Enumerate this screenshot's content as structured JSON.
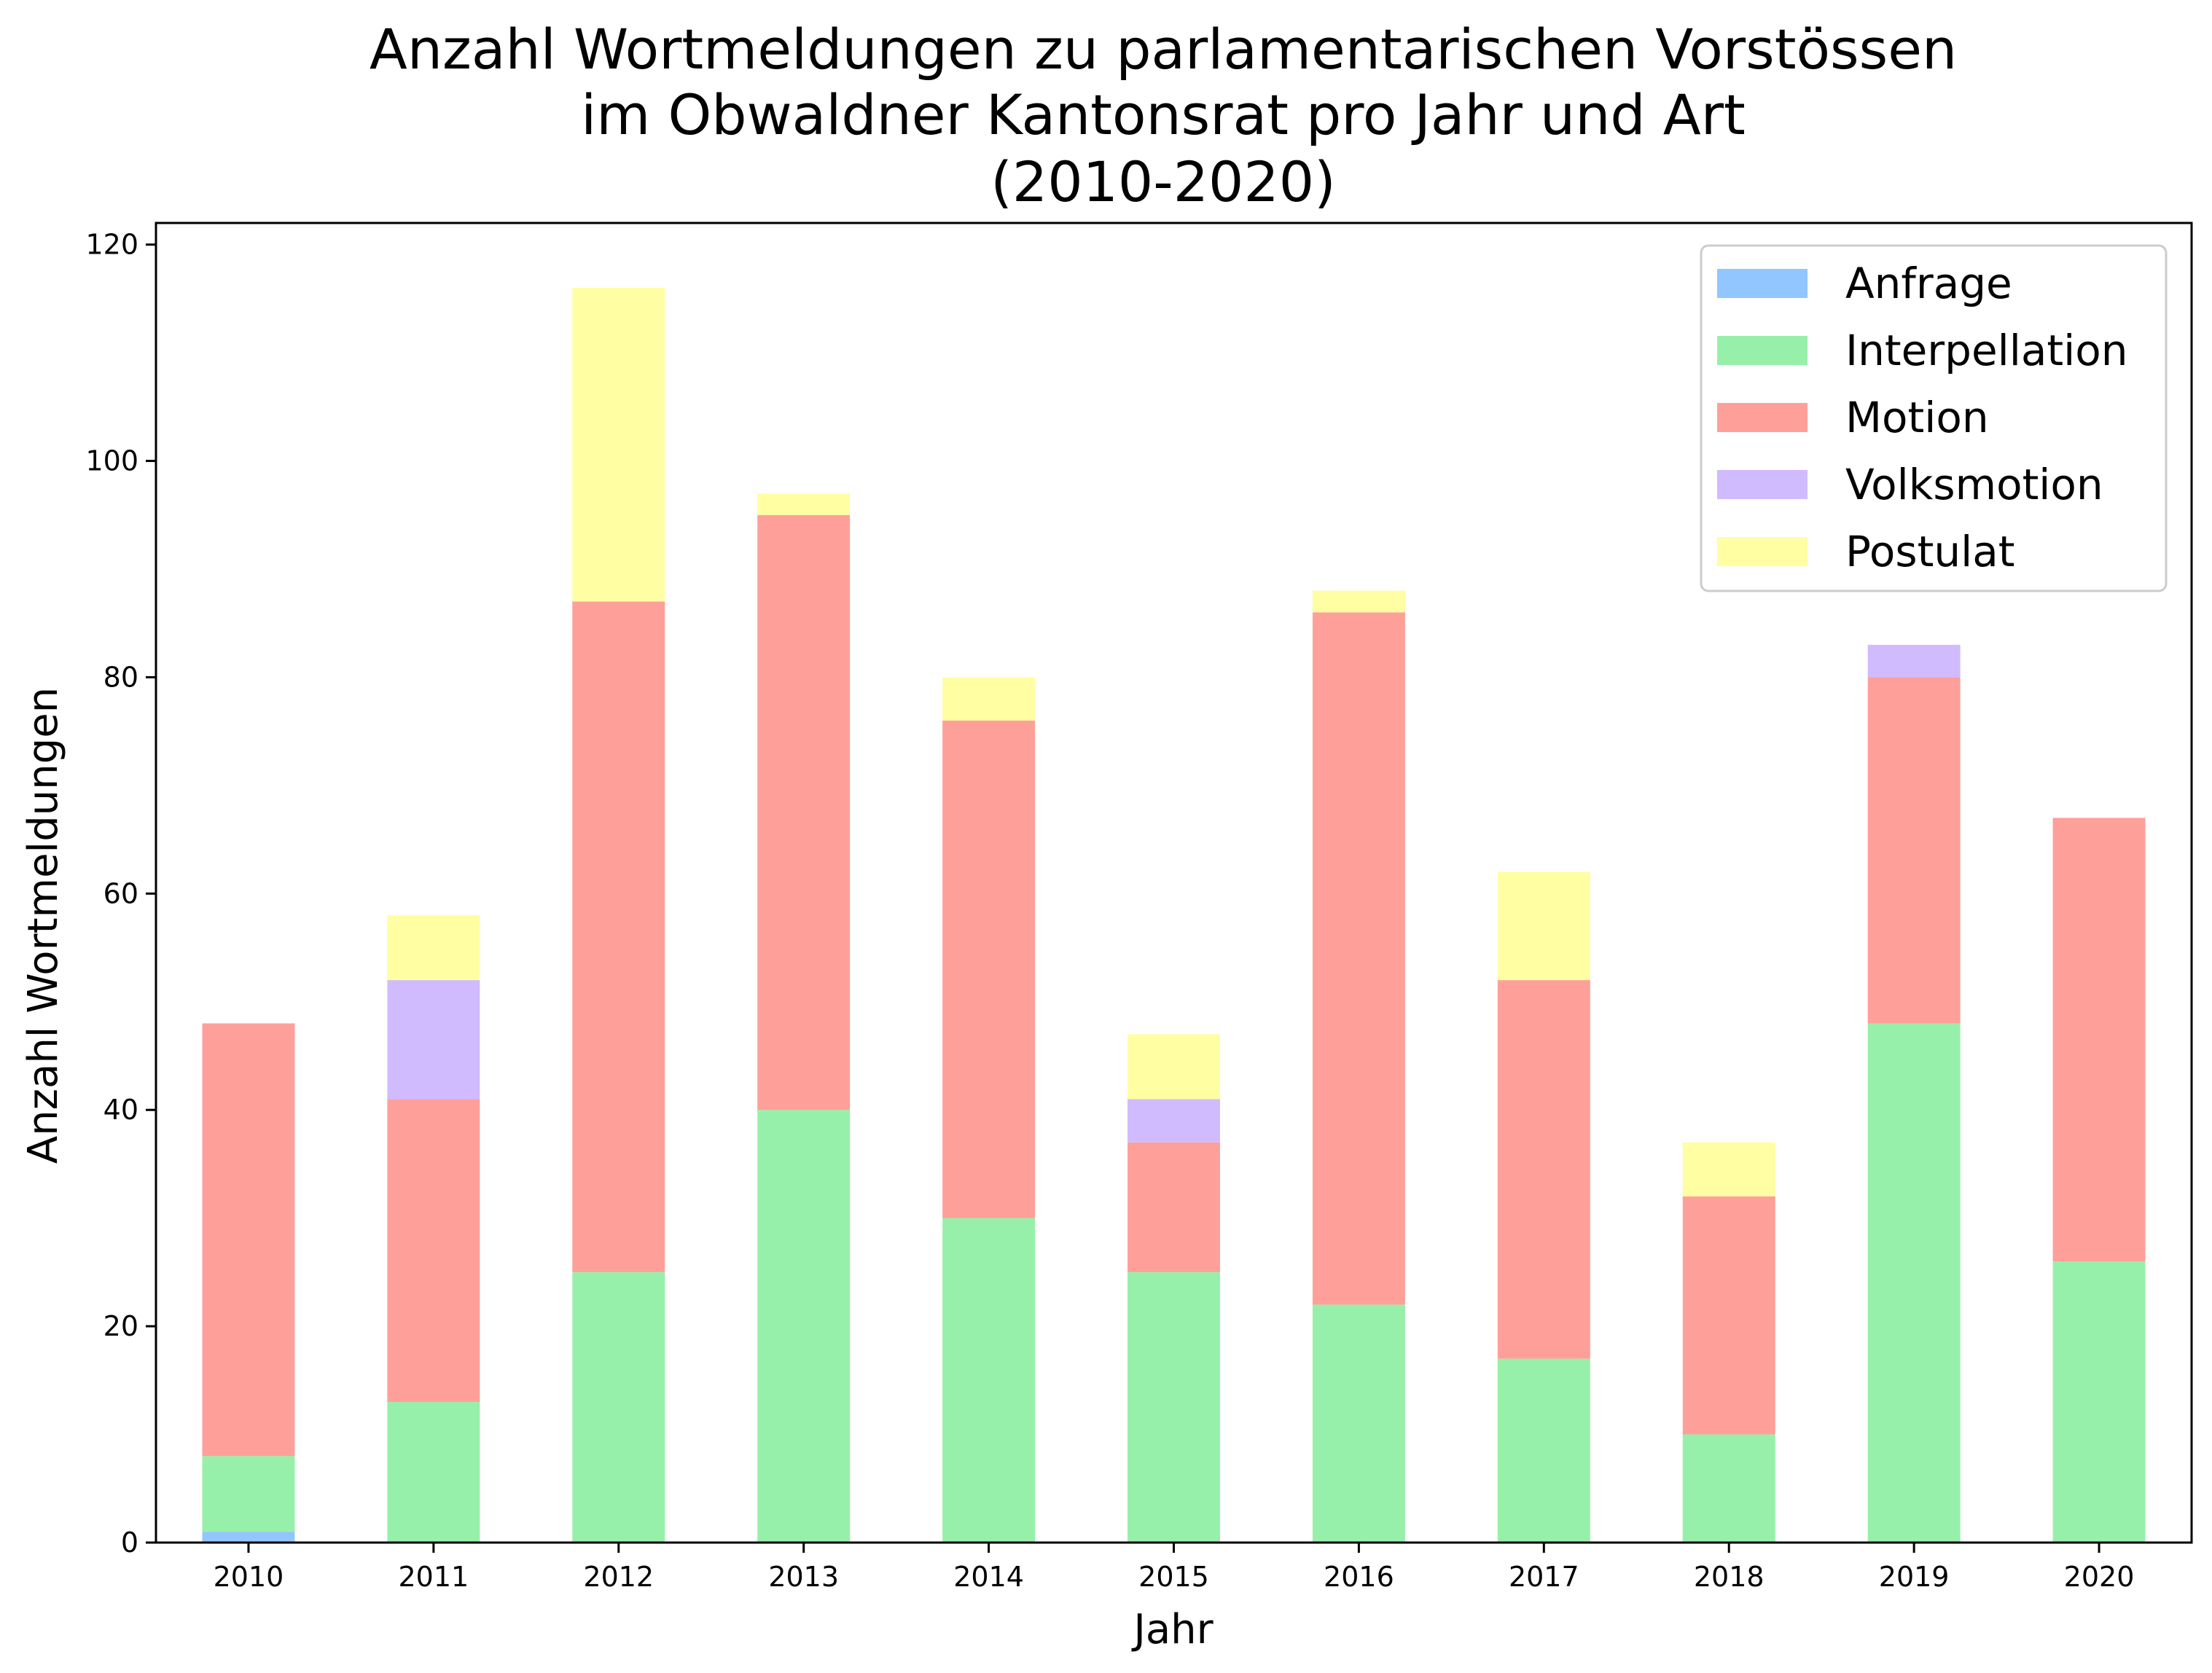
{
  "chart_data": {
    "type": "bar",
    "stacked": true,
    "title_lines": [
      "Anzahl Wortmeldungen zu parlamentarischen Vorstössen",
      "im Obwaldner Kantonsrat pro Jahr und Art",
      "(2010-2020)"
    ],
    "xlabel": "Jahr",
    "ylabel": "Anzahl Wortmeldungen",
    "ylim": [
      0,
      122
    ],
    "yticks": [
      0,
      20,
      40,
      60,
      80,
      100,
      120
    ],
    "grid": false,
    "legend_position": "top-right",
    "categories": [
      "2010",
      "2011",
      "2012",
      "2013",
      "2014",
      "2015",
      "2016",
      "2017",
      "2018",
      "2019",
      "2020"
    ],
    "series": [
      {
        "name": "Anfrage",
        "color": "#92c6ff",
        "values": [
          1,
          0,
          0,
          0,
          0,
          0,
          0,
          0,
          0,
          0,
          0
        ]
      },
      {
        "name": "Interpellation",
        "color": "#97f0aa",
        "values": [
          7,
          13,
          25,
          40,
          30,
          25,
          22,
          17,
          10,
          48,
          26
        ]
      },
      {
        "name": "Motion",
        "color": "#ff9f9a",
        "values": [
          40,
          28,
          62,
          55,
          46,
          12,
          64,
          35,
          22,
          32,
          41
        ]
      },
      {
        "name": "Volksmotion",
        "color": "#d0bbff",
        "values": [
          0,
          11,
          0,
          0,
          0,
          4,
          0,
          0,
          0,
          3,
          0
        ]
      },
      {
        "name": "Postulat",
        "color": "#fffea3",
        "values": [
          0,
          6,
          29,
          2,
          4,
          6,
          2,
          10,
          5,
          0,
          0
        ]
      }
    ]
  }
}
